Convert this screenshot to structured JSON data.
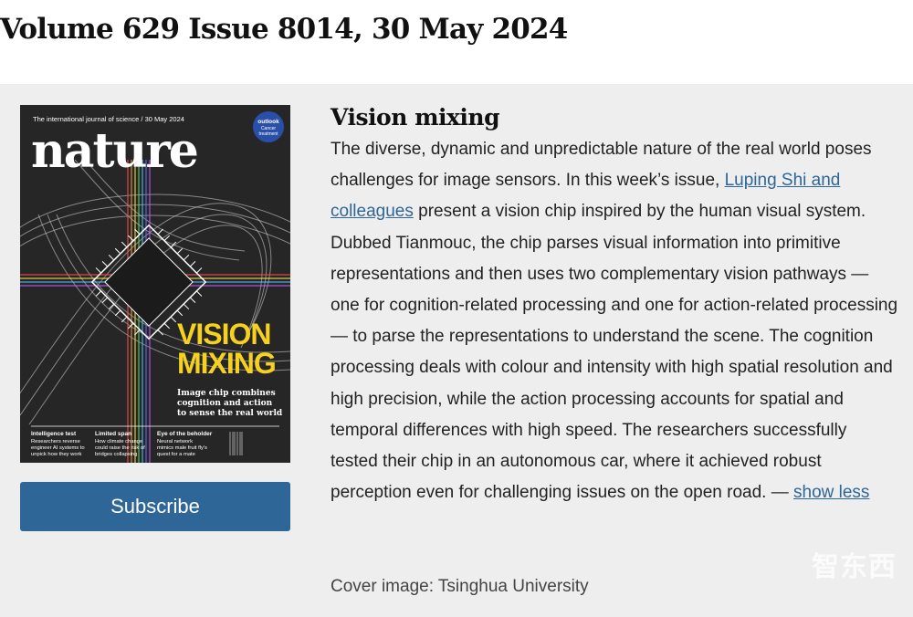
{
  "issue": {
    "title": "Volume 629 Issue 8014, 30 May 2024"
  },
  "cover": {
    "masthead_line": "The international journal of science / 30 May 2024",
    "logo": "nature",
    "badge": [
      "outlook",
      "Cancer",
      "treatment"
    ],
    "headline": [
      "VISION",
      "MIXING"
    ],
    "deck": [
      "Image chip combines",
      "cognition and action",
      "to sense the real world"
    ],
    "teasers": [
      {
        "title": "Intelligence test",
        "lines": [
          "Researchers reverse",
          "engineer AI systems to",
          "unpick how they work"
        ]
      },
      {
        "title": "Limited span",
        "lines": [
          "How climate change",
          "could raise the risk of",
          "bridges collapsing"
        ]
      },
      {
        "title": "Eye of the beholder",
        "lines": [
          "Neural network",
          "mimics male fruit fly's",
          "quest for a mate"
        ]
      }
    ],
    "colors": {
      "headline": "#f6d21e",
      "background": "#262626"
    }
  },
  "subscribe": {
    "label": "Subscribe"
  },
  "story": {
    "title": "Vision mixing",
    "text_1": "The diverse, dynamic and unpredictable nature of the real world poses challenges for image sensors. In this week’s issue, ",
    "link_authors": "Luping Shi and colleagues",
    "text_2": " present a vision chip inspired by the human visual system. Dubbed Tianmouc, the chip parses visual information into primitive representations and then uses two complementary vision pathways — one for cognition-related processing and one for action-related processing — to parse the representations to understand the scene. The cognition processing deals with colour and intensity with high spatial resolution and high precision, while the action processing accounts for spatial and temporal differences with high speed. The researchers successfully tested their chip in an autonomous car, where it achieved robust perception even for challenging issues on the open road. — ",
    "link_show_less": "show less"
  },
  "credit": "Cover image: Tsinghua University",
  "watermark": "智东西",
  "colors": {
    "accent": "#2e6697",
    "panel": "#eeeeee"
  }
}
